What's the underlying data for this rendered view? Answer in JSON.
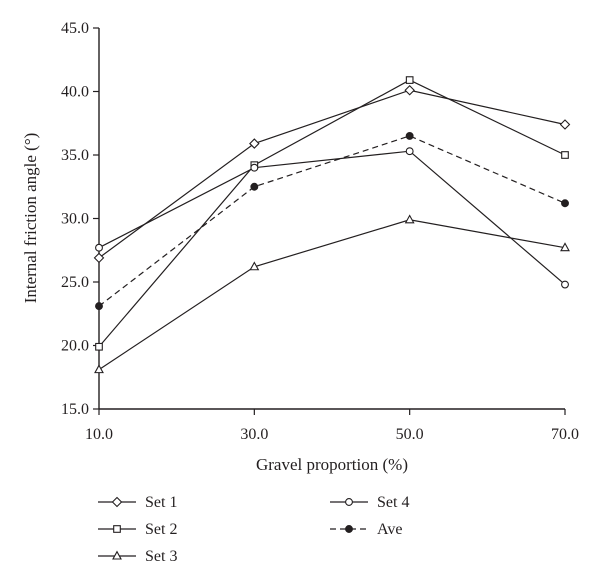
{
  "chart_data": {
    "type": "line",
    "xlabel": "Gravel proportion (%)",
    "ylabel": "Internal friction angle (°)",
    "x": [
      10,
      30,
      50,
      70
    ],
    "x_tick_labels": [
      "10.0",
      "30.0",
      "50.0",
      "70.0"
    ],
    "xlim": [
      10,
      70
    ],
    "ylim": [
      15,
      45
    ],
    "y_ticks": [
      15,
      20,
      25,
      30,
      35,
      40,
      45
    ],
    "y_tick_labels": [
      "15.0",
      "20.0",
      "25.0",
      "30.0",
      "35.0",
      "40.0",
      "45.0"
    ],
    "grid": false,
    "legend_position": "bottom",
    "series": [
      {
        "name": "Set 1",
        "marker": "diamond",
        "line": "solid",
        "values": [
          26.9,
          35.9,
          40.1,
          37.4
        ]
      },
      {
        "name": "Set 2",
        "marker": "square",
        "line": "solid",
        "values": [
          19.9,
          34.2,
          40.9,
          35.0
        ]
      },
      {
        "name": "Set 3",
        "marker": "triangle",
        "line": "solid",
        "values": [
          18.1,
          26.2,
          29.9,
          27.7
        ]
      },
      {
        "name": "Set 4",
        "marker": "circle",
        "line": "solid",
        "values": [
          27.7,
          34.0,
          35.3,
          24.8
        ]
      },
      {
        "name": "Ave",
        "marker": "filled-circle",
        "line": "dashed",
        "values": [
          23.1,
          32.5,
          36.5,
          31.2
        ]
      }
    ],
    "colors": {
      "line": "#231f20",
      "background": "#ffffff"
    }
  }
}
